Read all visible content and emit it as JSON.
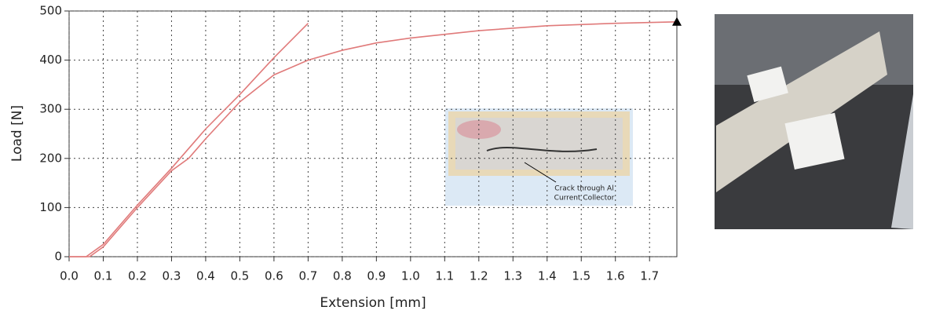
{
  "chart_data": {
    "type": "line",
    "xlabel": "Extension [mm]",
    "ylabel": "Load [N]",
    "xlim": [
      0,
      1.78
    ],
    "ylim": [
      0,
      500
    ],
    "xticks": [
      {
        "value": 0,
        "label": "0.0"
      },
      0.1,
      0.2,
      0.3,
      0.4,
      0.5,
      0.6,
      0.7,
      0.8,
      0.9,
      {
        "value": 1,
        "label": "1.0"
      },
      1.1,
      1.2,
      1.3,
      1.4,
      1.5,
      1.6,
      1.7
    ],
    "yticks": [
      0,
      100,
      200,
      300,
      400,
      500
    ],
    "grid": true,
    "series": [
      {
        "color": "#e07a7a",
        "x": [
          0,
          0.06,
          0.1,
          0.2,
          0.3,
          0.35,
          0.4,
          0.5,
          0.6,
          0.7,
          0.8,
          0.9,
          1.0,
          1.2,
          1.4,
          1.6,
          1.78
        ],
        "values": [
          0,
          0,
          20,
          100,
          175,
          200,
          240,
          315,
          370,
          400,
          420,
          435,
          445,
          460,
          470,
          475,
          478
        ]
      },
      {
        "color": "#e07a7a",
        "x": [
          0,
          0.05,
          0.1,
          0.2,
          0.3,
          0.4,
          0.5,
          0.6,
          0.7
        ],
        "values": [
          0,
          0,
          25,
          105,
          180,
          260,
          330,
          405,
          475
        ]
      }
    ],
    "annotation": [
      "Crack through Al",
      "Current Collector"
    ]
  }
}
